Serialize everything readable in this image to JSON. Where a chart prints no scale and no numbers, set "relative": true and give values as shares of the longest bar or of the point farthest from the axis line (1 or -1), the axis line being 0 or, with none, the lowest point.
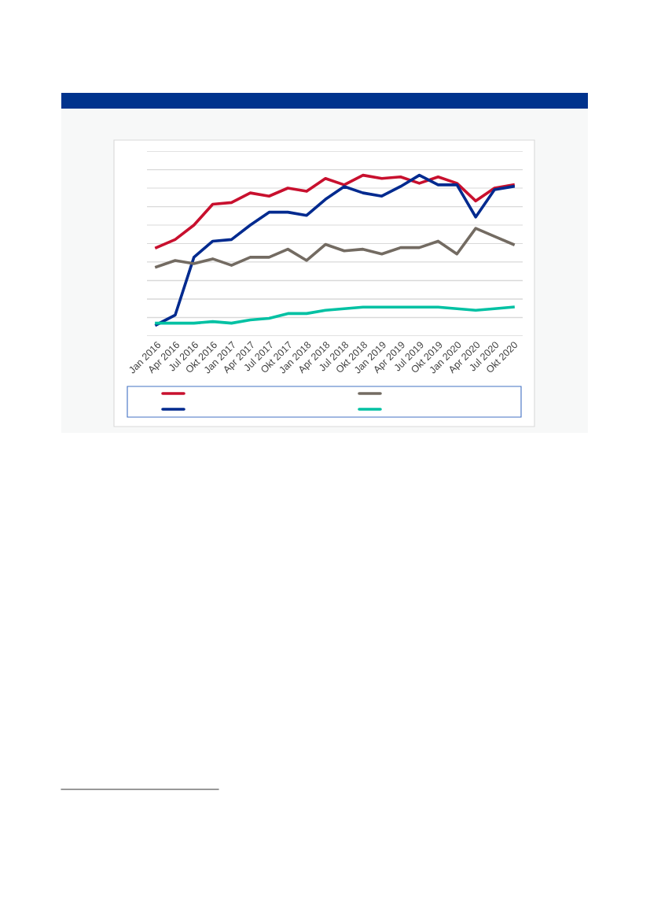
{
  "chart_data": {
    "type": "line",
    "relative": true,
    "categories": [
      "Jan 2016",
      "Apr 2016",
      "Jul 2016",
      "Okt 2016",
      "Jan 2017",
      "Apr 2017",
      "Jul 2017",
      "Okt 2017",
      "Jan 2018",
      "Apr 2018",
      "Jul 2018",
      "Okt 2018",
      "Jan 2019",
      "Apr 2019",
      "Jul 2019",
      "Okt 2019",
      "Jan 2020",
      "Apr 2020",
      "Jul 2020",
      "Okt 2020"
    ],
    "series": [
      {
        "color": "#c8102e",
        "values": [
          0.55,
          0.6,
          0.69,
          0.82,
          0.83,
          0.89,
          0.87,
          0.92,
          0.9,
          0.98,
          0.94,
          1,
          0.98,
          0.99,
          0.95,
          0.99,
          0.95,
          0.84,
          0.92,
          0.94
        ]
      },
      {
        "color": "#002a8f",
        "values": [
          0.07,
          0.13,
          0.49,
          0.59,
          0.6,
          0.69,
          0.77,
          0.77,
          0.75,
          0.85,
          0.93,
          0.89,
          0.87,
          0.93,
          1,
          0.94,
          0.94,
          0.74,
          0.91,
          0.93
        ]
      },
      {
        "color": "#736b62",
        "values": [
          0.43,
          0.47,
          0.45,
          0.48,
          0.44,
          0.49,
          0.49,
          0.54,
          0.47,
          0.57,
          0.53,
          0.54,
          0.51,
          0.55,
          0.55,
          0.59,
          0.51,
          0.67,
          0.62,
          0.57
        ]
      },
      {
        "color": "#00c1a3",
        "values": [
          0.08,
          0.08,
          0.08,
          0.09,
          0.08,
          0.1,
          0.11,
          0.14,
          0.14,
          0.16,
          0.17,
          0.18,
          0.18,
          0.18,
          0.18,
          0.18,
          0.17,
          0.16,
          0.17,
          0.18
        ]
      }
    ],
    "grid": "y",
    "marker": "none",
    "line_style": "solid"
  }
}
